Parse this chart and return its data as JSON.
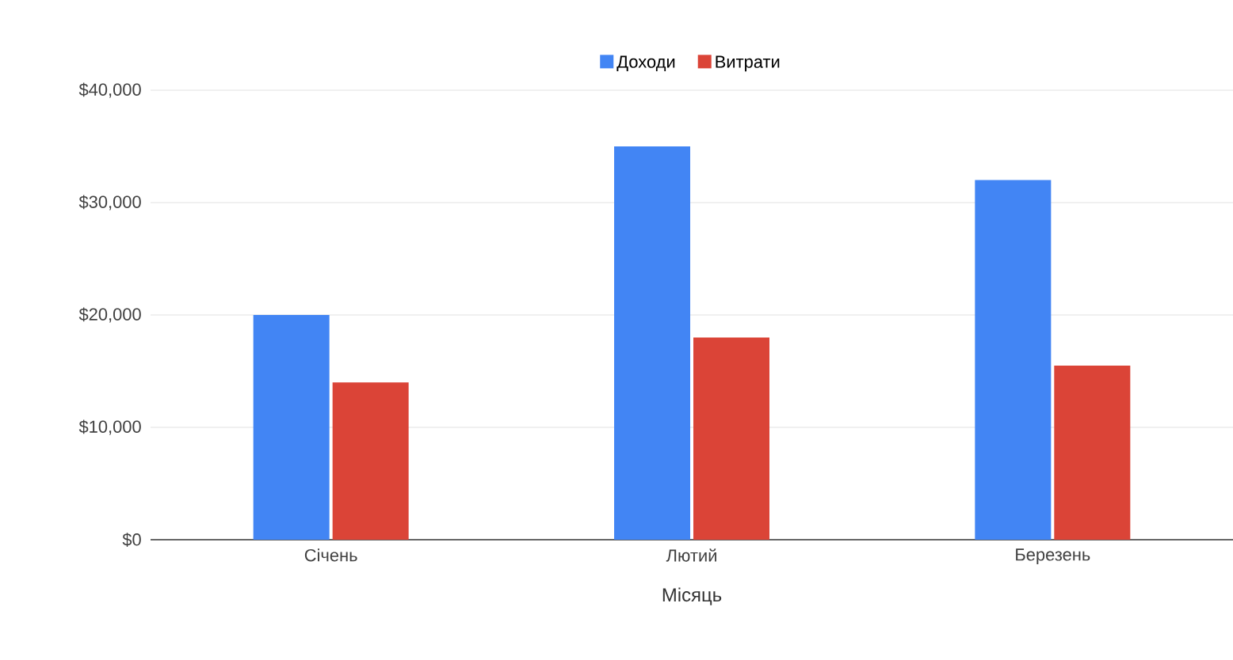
{
  "chart_data": {
    "type": "bar",
    "xlabel": "Місяць",
    "categories": [
      "Січень",
      "Лютий",
      "Березень"
    ],
    "series": [
      {
        "name": "Доходи",
        "color": "#4285f4",
        "values": [
          20000,
          35000,
          32000
        ]
      },
      {
        "name": "Витрати",
        "color": "#db4437",
        "values": [
          14000,
          18000,
          15500
        ]
      }
    ],
    "ylim": [
      0,
      40000
    ],
    "yticks": [
      {
        "value": 0,
        "label": "$0"
      },
      {
        "value": 10000,
        "label": "$10,000"
      },
      {
        "value": 20000,
        "label": "$20,000"
      },
      {
        "value": 30000,
        "label": "$30,000"
      },
      {
        "value": 40000,
        "label": "$40,000"
      }
    ],
    "grid": "y",
    "legend": "top"
  }
}
